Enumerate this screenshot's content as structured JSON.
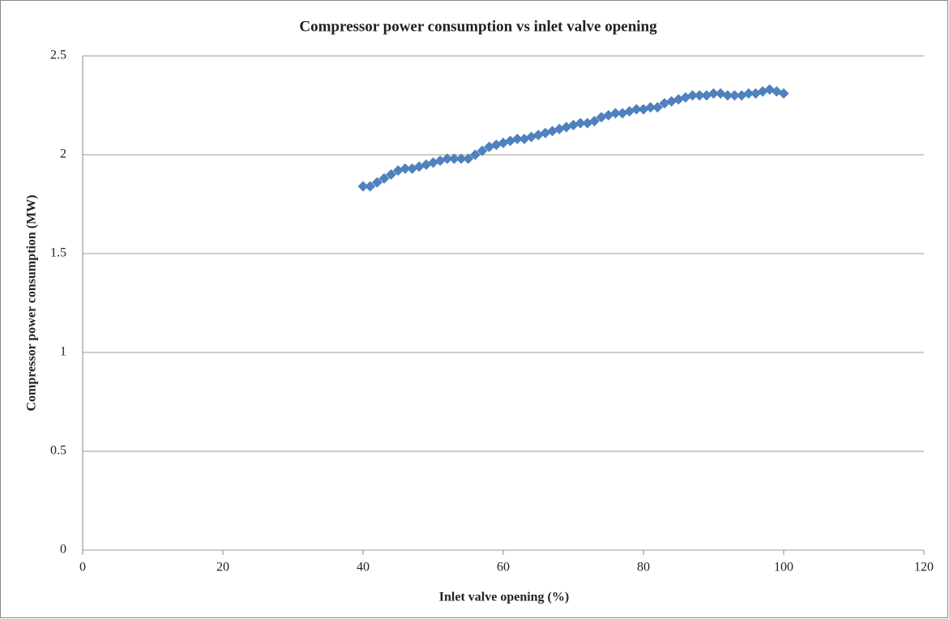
{
  "chart_data": {
    "type": "scatter",
    "title": "Compressor power consumption vs inlet valve opening",
    "x_label": "Inlet valve opening (%)",
    "y_label": "Compressor power consumption (MW)",
    "xlim": [
      0,
      120
    ],
    "xticks": [
      0,
      20,
      40,
      60,
      80,
      100,
      120
    ],
    "ylim": [
      0,
      2.5
    ],
    "yticks": [
      0,
      0.5,
      1,
      1.5,
      2,
      2.5
    ],
    "grid": true,
    "marker": "diamond",
    "color": "#4f81bd",
    "x": [
      40,
      41,
      42,
      43,
      44,
      45,
      46,
      47,
      48,
      49,
      50,
      51,
      52,
      53,
      54,
      55,
      56,
      57,
      58,
      59,
      60,
      61,
      62,
      63,
      64,
      65,
      66,
      67,
      68,
      69,
      70,
      71,
      72,
      73,
      74,
      75,
      76,
      77,
      78,
      79,
      80,
      81,
      82,
      83,
      84,
      85,
      86,
      87,
      88,
      89,
      90,
      91,
      92,
      93,
      94,
      95,
      96,
      97,
      98,
      99,
      100
    ],
    "values": [
      1.84,
      1.84,
      1.86,
      1.88,
      1.9,
      1.92,
      1.93,
      1.93,
      1.94,
      1.95,
      1.96,
      1.97,
      1.98,
      1.98,
      1.98,
      1.98,
      2.0,
      2.02,
      2.04,
      2.05,
      2.06,
      2.07,
      2.08,
      2.08,
      2.09,
      2.1,
      2.11,
      2.12,
      2.13,
      2.14,
      2.15,
      2.16,
      2.16,
      2.17,
      2.19,
      2.2,
      2.21,
      2.21,
      2.22,
      2.23,
      2.23,
      2.24,
      2.24,
      2.26,
      2.27,
      2.28,
      2.29,
      2.3,
      2.3,
      2.3,
      2.31,
      2.31,
      2.3,
      2.3,
      2.3,
      2.31,
      2.31,
      2.32,
      2.33,
      2.32,
      2.31
    ]
  }
}
